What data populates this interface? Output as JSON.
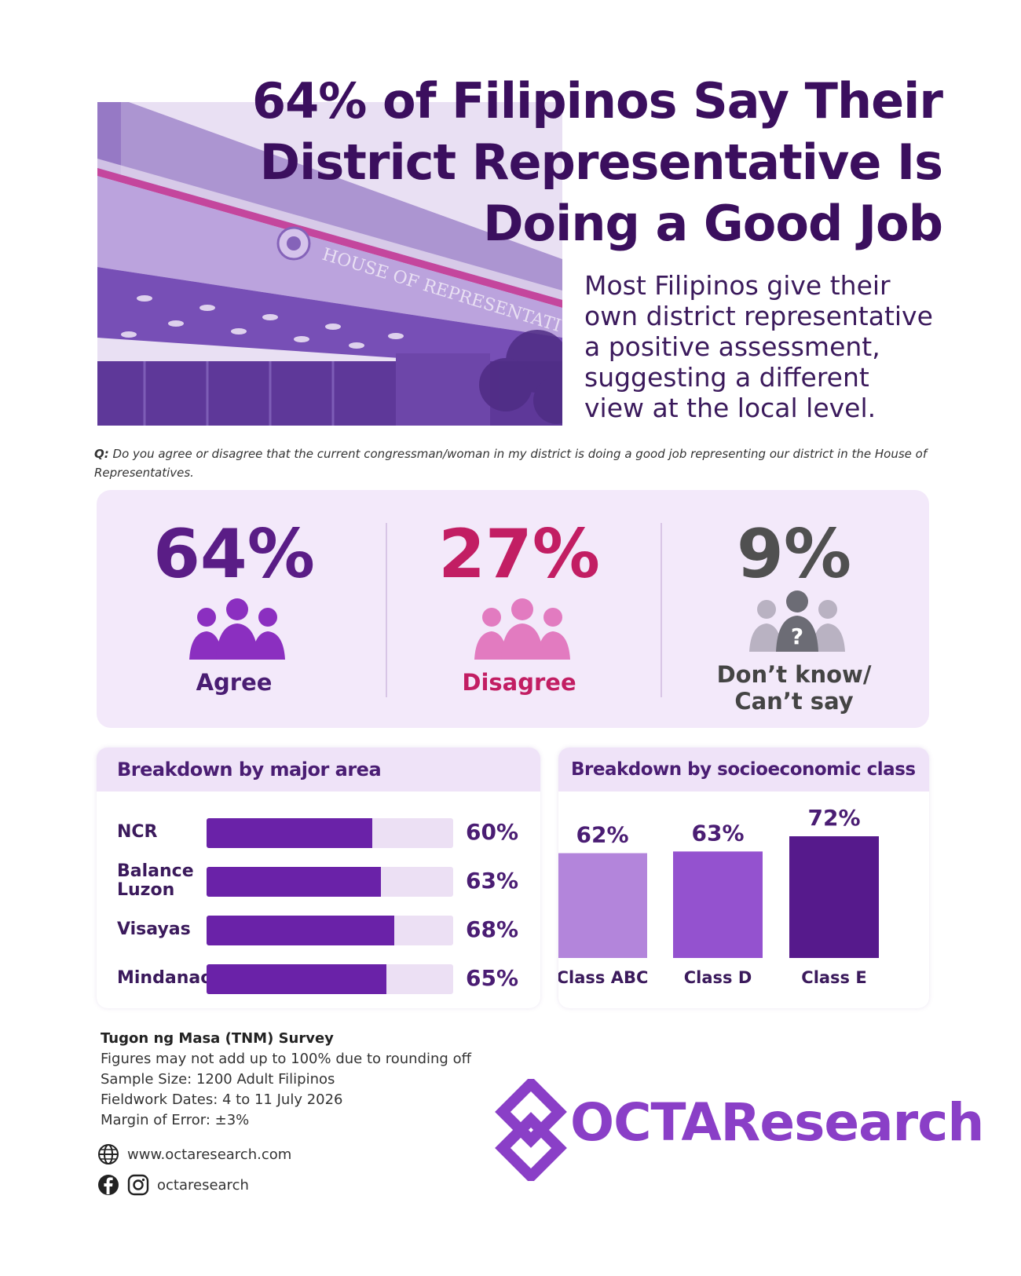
{
  "headline": {
    "line1": "64%  of Filipinos Say Their",
    "line2": "District Representative Is",
    "line3": "Doing a Good Job"
  },
  "subhead": {
    "line1": "Most Filipinos give their",
    "line2": "own district representative",
    "line3": "a positive assessment,",
    "line4": "suggesting a different",
    "line5": "view at the local level."
  },
  "photo": {
    "sign_text": "HOUSE OF REPRESENTATIVES"
  },
  "question": {
    "prefix": "Q:",
    "text": " Do you agree or disagree that the current congressman/woman in my district is doing a good job representing our district in the House of Representatives."
  },
  "summary": {
    "agree": {
      "value": "64%",
      "label": "Agree",
      "color": "#5a1d86"
    },
    "disagree": {
      "value": "27%",
      "label": "Disagree",
      "color": "#c21e63"
    },
    "dont_know": {
      "value": "9%",
      "label_line1": "Don’t know/",
      "label_line2": "Can’t say",
      "color": "#505050"
    },
    "icons": {
      "agree": "people-group-icon",
      "disagree": "people-group-icon",
      "dont_know": "people-question-icon"
    }
  },
  "chart_data": [
    {
      "type": "bar",
      "orientation": "horizontal",
      "title": "Breakdown by major area",
      "categories": [
        "NCR",
        "Balance Luzon",
        "Visayas",
        "Mindanao"
      ],
      "values": [
        60,
        63,
        68,
        65
      ],
      "value_labels": [
        "60%",
        "63%",
        "68%",
        "65%"
      ],
      "xlim": [
        0,
        100
      ],
      "colors": {
        "bar": "#6a22a8",
        "track": "#ece0f4"
      }
    },
    {
      "type": "bar",
      "orientation": "vertical",
      "title": "Breakdown by socioeconomic class",
      "categories": [
        "Class ABC",
        "Class D",
        "Class E"
      ],
      "values": [
        62,
        63,
        72
      ],
      "value_labels": [
        "62%",
        "63%",
        "72%"
      ],
      "colors": [
        "#b385db",
        "#9452cf",
        "#561a8c"
      ]
    }
  ],
  "footer": {
    "title": "Tugon ng Masa (TNM) Survey",
    "note1": "Figures may not add up to 100% due to rounding off",
    "note2": "Sample Size: 1200 Adult Filipinos",
    "note3": "Fieldwork Dates: 4 to 11 July 2026",
    "note4": "Margin of Error: ±3%",
    "website": "www.octaresearch.com",
    "social": "octaresearch",
    "icons": {
      "web": "globe-icon",
      "facebook": "facebook-icon",
      "instagram": "instagram-icon"
    }
  },
  "logo": {
    "text": "OCTAResearch",
    "color": "#8a3fc7"
  }
}
